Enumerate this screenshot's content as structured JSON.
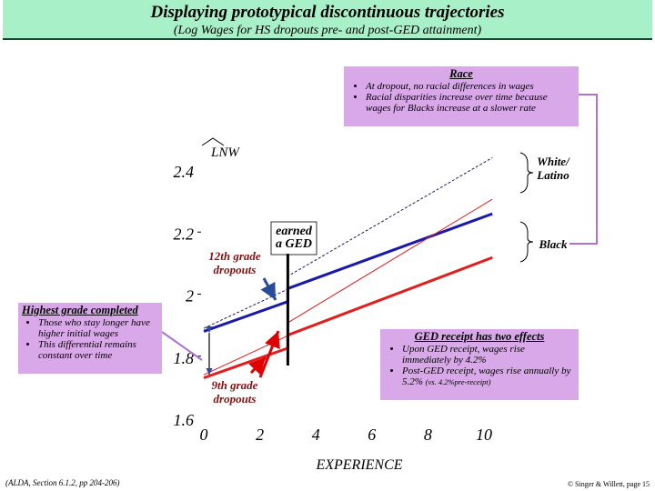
{
  "header": {
    "title": "Displaying prototypical discontinuous trajectories",
    "subtitle": "(Log Wages for HS dropouts pre- and post-GED attainment)"
  },
  "race_box": {
    "heading": "Race",
    "bullets": [
      "At dropout, no racial differences in wages",
      "Racial disparities increase over time because wages for Blacks increase at a slower rate"
    ]
  },
  "grade_box": {
    "heading": "Highest grade completed",
    "bullets": [
      "Those who stay longer have higher initial wages",
      "This differential remains constant over time"
    ]
  },
  "ged_box": {
    "heading": "GED receipt has two effects",
    "bullets": [
      "Upon GED receipt, wages rise immediately by 4.2%",
      "Post-GED receipt, wages rise annually by 5.2%"
    ],
    "bullet2_note": "(vs. 4.2%pre-receipt)"
  },
  "annotations": {
    "earned_ged": "earned a GED",
    "grade12": "12th grade dropouts",
    "grade9": "9th grade dropouts",
    "white_latino": "White/ Latino",
    "black": "Black"
  },
  "footer": {
    "left": "(ALDA, Section 6.1.2, pp 204-206)",
    "right": "© Singer & Willett, page 15"
  },
  "colors": {
    "header_bg": "#a8f0c8",
    "box_bg": "#d8a8e8",
    "black_series": "#1a1aa8",
    "red_series": "#e02020"
  },
  "chart_data": {
    "type": "line",
    "xlabel": "EXPERIENCE",
    "ylabel": "LNW",
    "xlim": [
      0,
      10
    ],
    "ylim": [
      1.6,
      2.4
    ],
    "x_ticks": [
      0,
      2,
      4,
      6,
      8,
      10
    ],
    "y_ticks": [
      1.6,
      1.8,
      2,
      2.2,
      2.4
    ],
    "y_tick_labels": [
      "1.6",
      "1.8",
      "2",
      "2.2",
      "2.4"
    ],
    "ged_time": 3,
    "series": [
      {
        "name": "White/ Latino",
        "group": "12th grade",
        "color": "#1a1a6a",
        "width": 1,
        "dash": "3,2",
        "x": [
          0,
          3,
          3,
          10.3
        ],
        "y": [
          1.89,
          2.016,
          2.058,
          2.44
        ]
      },
      {
        "name": "Black",
        "group": "12th grade",
        "color": "#1a1aa8",
        "width": 3,
        "dash": "",
        "x": [
          0,
          3,
          3,
          10.3
        ],
        "y": [
          1.88,
          1.976,
          2.018,
          2.259
        ]
      },
      {
        "group": "9th grade",
        "color": "#e02020",
        "width": 1,
        "dash": "",
        "x": [
          0,
          3,
          3,
          10.3
        ],
        "y": [
          1.74,
          1.866,
          1.908,
          2.306
        ]
      },
      {
        "group": "9th grade",
        "color": "#e02020",
        "width": 3,
        "dash": "",
        "x": [
          0,
          3,
          3,
          10.3
        ],
        "y": [
          1.73,
          1.826,
          1.868,
          2.118
        ]
      }
    ]
  }
}
